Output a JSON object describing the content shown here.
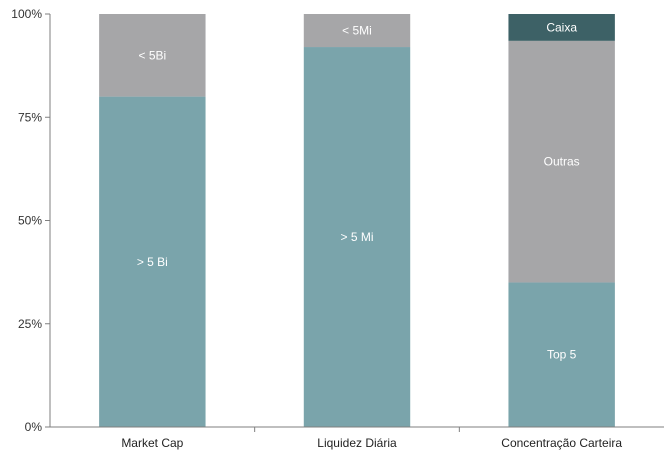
{
  "chart_data": {
    "type": "bar",
    "stacked": true,
    "percent": true,
    "categories": [
      "Market Cap",
      "Liquidez Diária",
      "Concentração Carteira"
    ],
    "ylim": [
      0,
      100
    ],
    "yticks": [
      0,
      25,
      50,
      75,
      100
    ],
    "ytick_labels": [
      "0%",
      "25%",
      "50%",
      "75%",
      "100%"
    ],
    "grid": false,
    "legend": "none",
    "bars": [
      {
        "category": "Market Cap",
        "segments": [
          {
            "label": "> 5 Bi",
            "value": 80,
            "color": "#7aa4ab"
          },
          {
            "label": "< 5Bi",
            "value": 20,
            "color": "#a6a6a8"
          }
        ]
      },
      {
        "category": "Liquidez Diária",
        "segments": [
          {
            "label": "> 5 Mi",
            "value": 92,
            "color": "#7aa4ab"
          },
          {
            "label": "< 5Mi",
            "value": 8,
            "color": "#a6a6a8"
          }
        ]
      },
      {
        "category": "Concentração Carteira",
        "segments": [
          {
            "label": "Top 5",
            "value": 35,
            "color": "#7aa4ab"
          },
          {
            "label": "Outras",
            "value": 58.5,
            "color": "#a6a6a8"
          },
          {
            "label": "Caixa",
            "value": 6.5,
            "color": "#3d6166"
          }
        ]
      }
    ]
  }
}
